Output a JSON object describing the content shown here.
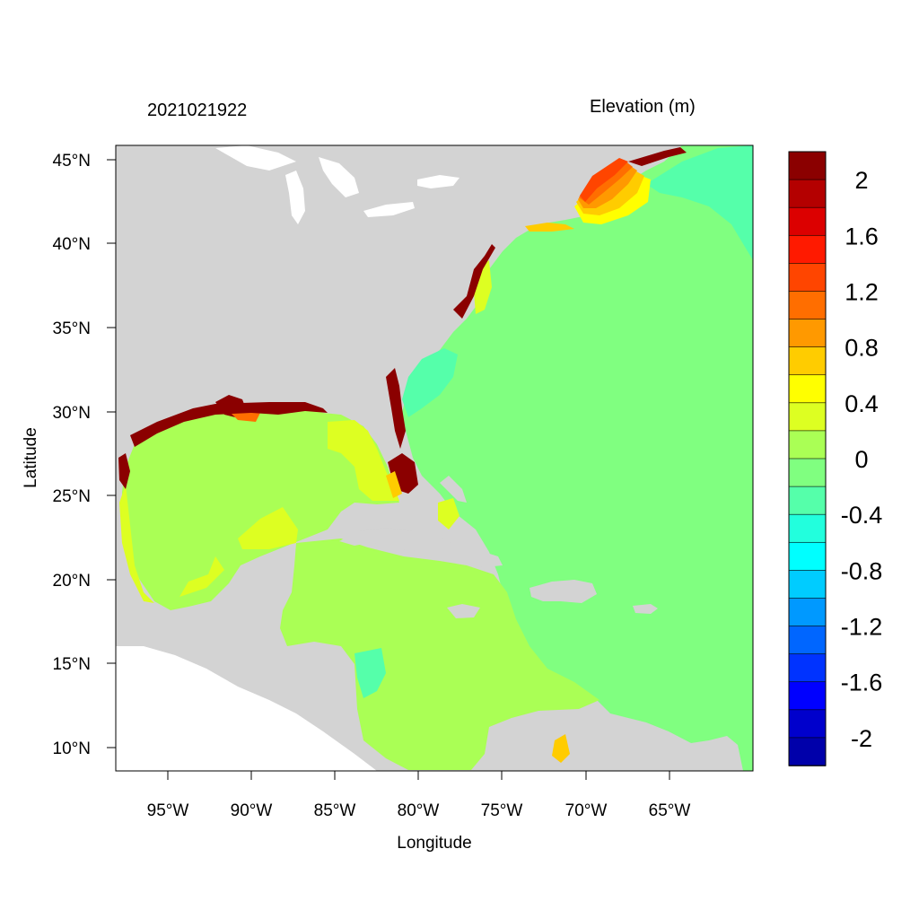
{
  "title_left": "2021021922",
  "title_right": "Elevation (m)",
  "xlabel": "Longitude",
  "ylabel": "Latitude",
  "x_ticks": [
    "95°W",
    "90°W",
    "85°W",
    "80°W",
    "75°W",
    "70°W",
    "65°W"
  ],
  "y_ticks": [
    "45°N",
    "40°N",
    "35°N",
    "30°N",
    "25°N",
    "20°N",
    "15°N",
    "10°N"
  ],
  "colorbar": {
    "labels": [
      "2",
      "1.6",
      "1.2",
      "0.8",
      "0.4",
      "0",
      "-0.4",
      "-0.8",
      "-1.2",
      "-1.6",
      "-2"
    ],
    "colors": [
      "#8b0000",
      "#b40000",
      "#dc0000",
      "#ff1a00",
      "#ff4500",
      "#ff6e00",
      "#ff9900",
      "#ffcc00",
      "#ffff00",
      "#ddff22",
      "#aaff55",
      "#80ff80",
      "#55ffaa",
      "#22ffdd",
      "#00ffff",
      "#00ccff",
      "#0099ff",
      "#0066ff",
      "#0033ff",
      "#0000ff",
      "#0000cc",
      "#0000aa"
    ]
  },
  "map_colors": {
    "land": "#d3d3d3",
    "lakes": "#ffffff",
    "ocean_near_zero": "#80ff80",
    "gulf_caribbean": "#aaff55",
    "shelf_low": "#55ffaa",
    "shelf_high": "#ddff22",
    "surge_high": "#8b0000"
  }
}
